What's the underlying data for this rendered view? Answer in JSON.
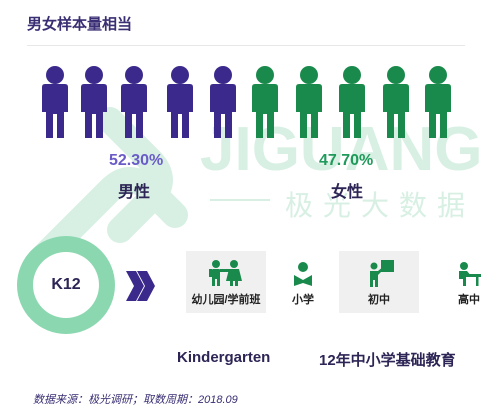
{
  "title": "男女样本量相当",
  "watermark": {
    "text": "JIGUANG",
    "subtext": "极光大数据"
  },
  "colors": {
    "male": "#3b2a8c",
    "female": "#1a8a4c",
    "ring": "#8bd8b0",
    "chevron": "#3b2a8c"
  },
  "gender": {
    "male": {
      "percent": "52.30%",
      "label": "男性",
      "icon_count": 5
    },
    "female": {
      "percent": "47.70%",
      "label": "女性",
      "icon_count": 5
    }
  },
  "k12": {
    "label": "K12"
  },
  "stages": [
    {
      "label": "幼儿园/学前班",
      "icon": "children-icon"
    },
    {
      "label": "小学",
      "icon": "student-reading-icon"
    },
    {
      "label": "初中",
      "icon": "teacher-board-icon"
    },
    {
      "label": "高中",
      "icon": "student-desk-icon"
    }
  ],
  "kindergarten_label": "Kindergarten",
  "education_label": "12年中小学基础教育",
  "source": "数据来源：极光调研；取数周期：2018.09"
}
